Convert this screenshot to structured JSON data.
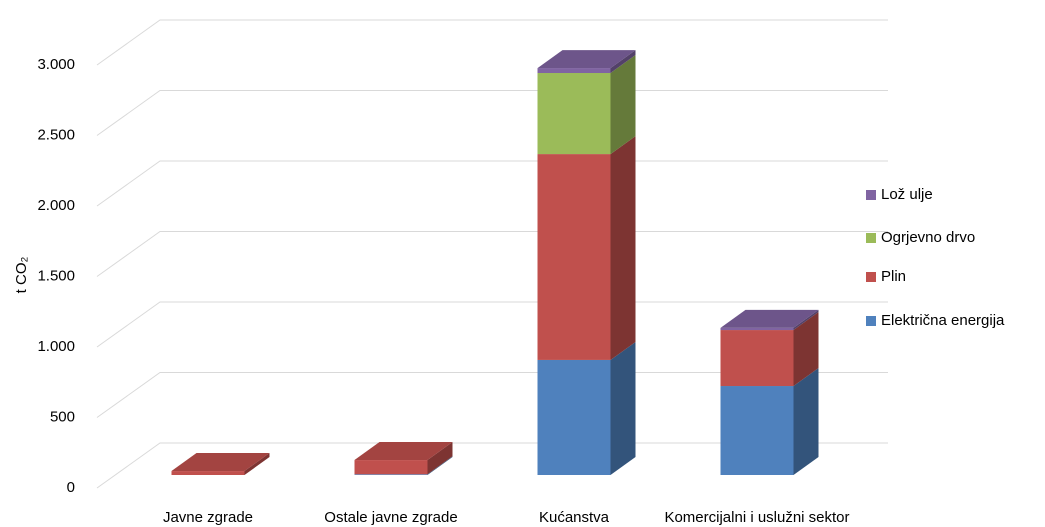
{
  "chart_data": {
    "type": "bar3d_stacked",
    "y_label": "t CO₂",
    "categories": [
      "Javne zgrade",
      "Ostale javne zgrade",
      "Kućanstva",
      "Komercijalni i uslužni sektor"
    ],
    "series": [
      {
        "name": "Električna energija",
        "color": "#4f81bd",
        "values": [
          0,
          5,
          816,
          631
        ]
      },
      {
        "name": "Plin",
        "color": "#c0504d",
        "values": [
          28,
          101,
          1460,
          397
        ]
      },
      {
        "name": "Ogrjevno drvo",
        "color": "#9bbb59",
        "values": [
          0,
          0,
          575,
          0
        ]
      },
      {
        "name": "Lož ulje",
        "color": "#8064a2",
        "values": [
          0,
          0,
          35,
          15
        ]
      }
    ],
    "ylim": [
      0,
      3000
    ],
    "yticks": [
      0,
      500,
      {
        "value": 1000,
        "label": "1.000"
      },
      {
        "value": 1500,
        "label": "1.500"
      },
      {
        "value": 2000,
        "label": "2.000"
      },
      {
        "value": 2500,
        "label": "2.500"
      },
      {
        "value": 3000,
        "label": "3.000"
      }
    ],
    "grid": true,
    "legend": "right"
  }
}
